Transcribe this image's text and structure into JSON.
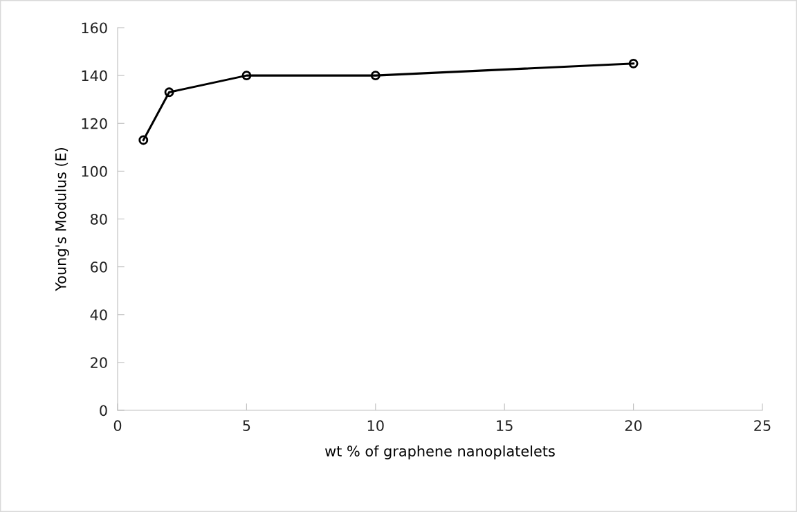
{
  "chart_data": {
    "type": "line",
    "xlabel": "wt % of graphene nanoplatelets",
    "ylabel": "Young's Modulus (E)",
    "x": [
      1,
      2,
      5,
      10,
      20
    ],
    "series": [
      {
        "color": "#000000",
        "values": [
          113,
          133,
          140,
          140,
          145
        ]
      }
    ],
    "xlim": [
      0,
      25
    ],
    "xticks": [
      0,
      5,
      10,
      15,
      20,
      25
    ],
    "ylim": [
      0,
      160
    ],
    "yticks": [
      0,
      20,
      40,
      60,
      80,
      100,
      120,
      140,
      160
    ],
    "marker": "circle",
    "line_style": "solid",
    "grid": false,
    "legend": false
  }
}
